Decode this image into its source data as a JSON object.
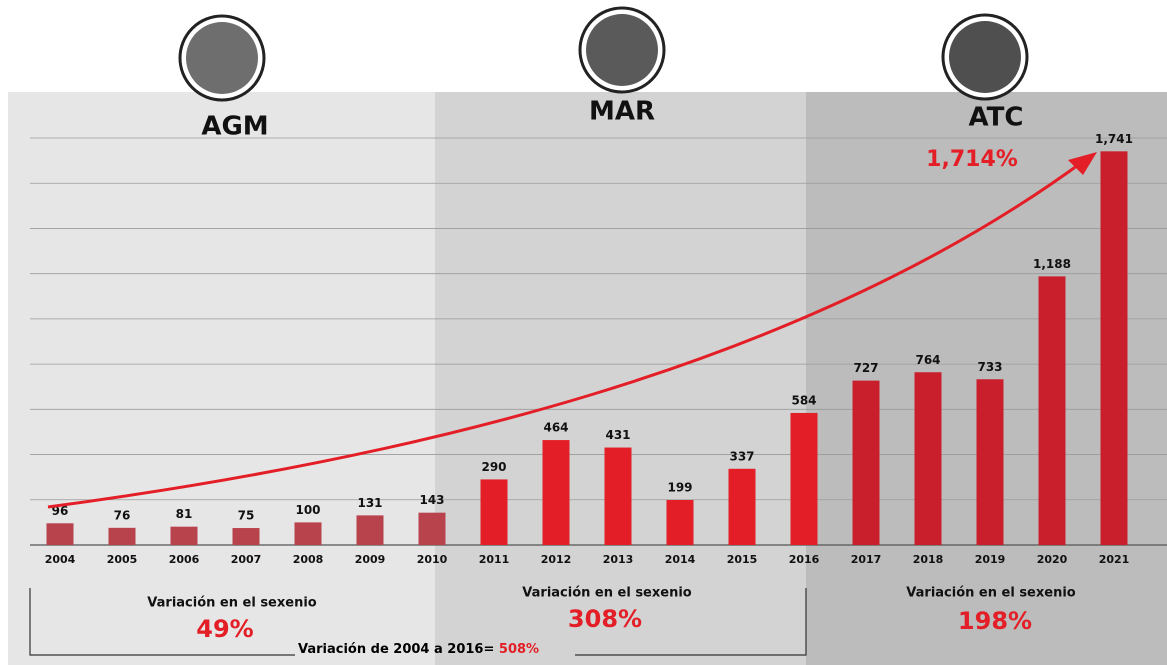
{
  "chart_data": {
    "type": "bar",
    "categories": [
      "2004",
      "2005",
      "2006",
      "2007",
      "2008",
      "2009",
      "2010",
      "2011",
      "2012",
      "2013",
      "2014",
      "2015",
      "2016",
      "2017",
      "2018",
      "2019",
      "2020",
      "2021"
    ],
    "values": [
      96,
      76,
      81,
      75,
      100,
      131,
      143,
      290,
      464,
      431,
      199,
      337,
      584,
      727,
      764,
      733,
      1188,
      1741
    ],
    "value_labels": [
      "96",
      "76",
      "81",
      "75",
      "100",
      "131",
      "143",
      "290",
      "464",
      "431",
      "199",
      "337",
      "584",
      "727",
      "764",
      "733",
      "1,188",
      "1,741"
    ],
    "colors": [
      "#b8434d",
      "#b8434d",
      "#b8434d",
      "#b8434d",
      "#b8434d",
      "#b8434d",
      "#b8434d",
      "#e31e26",
      "#e31e26",
      "#e31e26",
      "#e31e26",
      "#e31e26",
      "#e31e26",
      "#c91f2c",
      "#c91f2c",
      "#c91f2c",
      "#c91f2c",
      "#c91f2c"
    ],
    "ylim": [
      0,
      1800
    ],
    "yticks": [
      0,
      200,
      400,
      600,
      800,
      1000,
      1200,
      1400,
      1600,
      1800
    ],
    "grid": true,
    "growth_annotation": "1,714%",
    "periods": [
      {
        "name": "AGM",
        "caption": "Variación en el sexenio",
        "variation": "49%"
      },
      {
        "name": "MAR",
        "caption": "Variación en el sexenio",
        "variation": "308%"
      },
      {
        "name": "ATC",
        "caption": "Variación en el sexenio",
        "variation": "198%"
      }
    ],
    "total_variation": {
      "text": "Variación de 2004 a 2016=",
      "value": "508%"
    }
  }
}
